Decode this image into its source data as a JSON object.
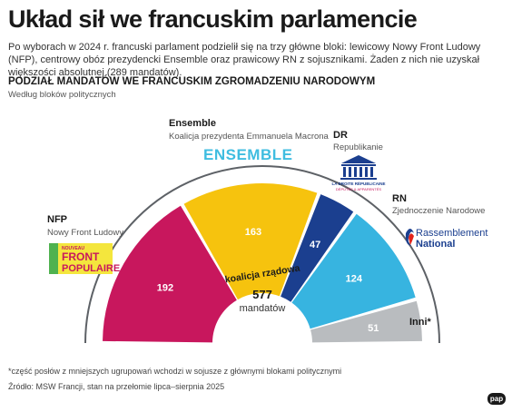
{
  "title": "Układ sił we francuskim parlamencie",
  "intro": "Po wyborach w 2024 r. francuski parlament podzielił się na trzy główne bloki: lewicowy Nowy Front Ludowy (NFP), centrowy obóz prezydencki Ensemble oraz prawicowy RN z sojusznikami. Żaden z nich nie uzyskał większości absolutnej (289 mandatów).",
  "section_title": "PODZIAŁ MANDATÓW WE FRANCUSKIM ZGROMADZENIU NARODOWYM",
  "section_subtitle": "Według bloków politycznych",
  "chart_data": {
    "type": "pie",
    "subtype": "half-donut",
    "total": 577,
    "total_label": "mandatów",
    "coalition_label": "koalicja rządowa",
    "series": [
      {
        "key": "nfp",
        "label": "192",
        "value": 192,
        "name": "NFP",
        "description": "Nowy Front Ludowy",
        "color": "#c8175d",
        "logo": "NOUVEAU FRONT POPULAIRE"
      },
      {
        "key": "ensemble",
        "label": "163",
        "value": 163,
        "name": "Ensemble",
        "description": "Koalicja prezydenta Emmanuela Macrona",
        "color": "#f6c30e",
        "logo": "ENSEMBLE"
      },
      {
        "key": "dr",
        "label": "47",
        "value": 47,
        "name": "DR",
        "description": "Republikanie",
        "color": "#1b3f8f",
        "logo": "LA DROITE RÉPUBLICAINE"
      },
      {
        "key": "rn",
        "label": "124",
        "value": 124,
        "name": "RN",
        "description": "Zjednoczenie Narodowe",
        "color": "#37b4e0",
        "logo": "Rassemblement National"
      },
      {
        "key": "inni",
        "label": "51",
        "value": 51,
        "name": "Inni*",
        "description": "",
        "color": "#b9bcbf",
        "logo": ""
      }
    ]
  },
  "footnote": "*część posłów z mniejszych ugrupowań wchodzi w sojusze z głównymi blokami politycznymi",
  "source": "Źródło: MSW Francji, stan na przełomie lipca–sierpnia 2025",
  "logos": {
    "nfp_top": "NOUVEAU",
    "nfp_mid": "FRONT",
    "nfp_bottom": "POPULAIRE",
    "ensemble": "ENSEMBLE",
    "dr_line1": "LA DROITE RÉPUBLICAINE",
    "dr_line2": "DÉPUTÉS & APPARENTÉS",
    "rn_line1": "Rassemblement",
    "rn_line2": "National"
  },
  "agency_logo": "pap"
}
